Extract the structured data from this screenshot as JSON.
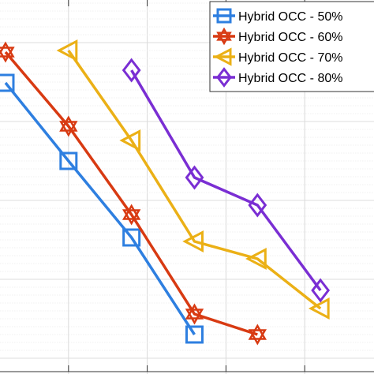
{
  "chart_data": {
    "type": "line",
    "title": "",
    "xlabel": "",
    "ylabel": "",
    "xlim": [
      0.0,
      4.75
    ],
    "ylim": [
      0.0,
      4.74
    ],
    "grid": true,
    "legend_position": "top-right",
    "series": [
      {
        "name": "Hybrid OCC - 50%",
        "color": "#2E7FE0",
        "marker": "square",
        "x": [
          0.07,
          0.87,
          1.67,
          2.47
        ],
        "y": [
          3.69,
          2.7,
          1.73,
          0.5
        ]
      },
      {
        "name": "Hybrid OCC - 60%",
        "color": "#D83A12",
        "marker": "hexagram",
        "x": [
          0.07,
          0.87,
          1.67,
          2.47,
          3.27
        ],
        "y": [
          4.08,
          3.14,
          2.02,
          0.76,
          0.5
        ]
      },
      {
        "name": "Hybrid OCC - 70%",
        "color": "#EBB016",
        "marker": "triangle-left",
        "x": [
          0.87,
          1.67,
          2.47,
          3.27,
          4.07
        ],
        "y": [
          4.1,
          2.96,
          1.68,
          1.46,
          0.83
        ]
      },
      {
        "name": "Hybrid OCC - 80%",
        "color": "#7A2ED3",
        "marker": "diamond",
        "x": [
          1.67,
          2.47,
          3.27,
          4.07
        ],
        "y": [
          3.85,
          2.49,
          2.14,
          1.06
        ]
      }
    ]
  }
}
